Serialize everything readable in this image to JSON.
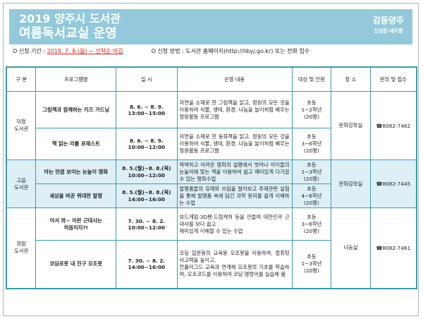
{
  "banner": {
    "title_line1": "2019 양주시 도서관",
    "title_line2": "여름독서교실 운영",
    "logo_main": "감동양주",
    "logo_sub": "신성장·새지평"
  },
  "info": {
    "period_label": "O 신청 기간 : ",
    "period_value": "2019. 7. 8.(월) ~ 선착순 마감",
    "method": "O 신청 방법 : 도서관 홈페이지(http://libyj.go.kr) 또는 전화 접수"
  },
  "colors": {
    "banner": "#93c9da",
    "border": "#3d9aaa",
    "highlight_row": "#deeff5",
    "accent_red": "#d02020"
  },
  "table": {
    "headers": [
      "구 분",
      "프로그램명",
      "일 시",
      "운영 내용",
      "대상 및 인원",
      "장 소",
      "문의 및 접수"
    ],
    "groups": [
      {
        "library": "덕정\n도서관",
        "place": "문화강좌실",
        "contact": "☎8082-7462",
        "rows": [
          {
            "program": "그림책과 함께하는 키즈 가드닝",
            "date": "8. 6. ~ 8. 9.\n13:00~15:00",
            "content": "자연을 소재로 한 그림책을 읽고, 정원의 모든 것을 이용하여 식물, 생태, 환경, 나눔을 놀이처럼 배우는 정원활동 프로그램",
            "target": "초등\n1~2학년\n(20명)"
          },
          {
            "program": "책 읽는 리틀 포레스트",
            "date": "8. 6. ~ 8. 9.\n10:00~12:00",
            "content": "자연을 소재로 한 동화책을 읽고, 정원의 모든 것을 이용하여 식물, 생태, 환경, 나눔을 놀이처럼 배우는 정원활동 프로그램",
            "target": "초등\n3~6학년\n(20명)"
          }
        ]
      },
      {
        "library": "고읍\n도서관",
        "place": "문화강좌실",
        "contact": "☎8082-7445",
        "rows": [
          {
            "program": "아는 만큼 보이는 눈높이 명화",
            "date": "8. 5.(월)~8. 8.(목)\n10:00~12:00",
            "content": "딱딱하고 어려운 명화의 설명에서 벗어나 아이들의 눈높이에 맞는 책을 이용하여 쉽고 재미있게 다가갈 수 있는 명화수업",
            "target": "초등\n1~3학년\n(20명)"
          },
          {
            "program": "세상을 바꾼 위대한 발명",
            "date": "8. 5.(월)~8. 8.(목)\n14:00~16:00",
            "content": "발명품들의 유래와 쓰임을 알아보고 주제관련 실험을 통해 발명품 속에 담긴 과학 원리를 쉽게 이해하는 수업",
            "target": "초등\n4~6학년\n(20명)"
          }
        ]
      },
      {
        "library": "희망\n도서관",
        "place": "나눔실",
        "contact": "☎8082-7461",
        "rows": [
          {
            "program": "어서 와~ 이런 근대사는\n처음이지?!",
            "date": "7. 30. ~ 8. 2.\n10:00~12:00",
            "content": "보드게임·3D펜·드림캐처 등을 만들며 대한민국 근대사를 보다 쉽고\n재미있게 이해할 수 있는 수업",
            "target": "초등\n3~6학년\n(20명)"
          },
          {
            "program": "코딩로봇 내 친구 오조봇",
            "date": "7. 30. ~ 8. 2.\n14:00~16:00",
            "content": "코딩 입문용의 교육용 오조봇을 이용하여, 컴퓨팅 사고력을 높이고,\n언플러그드 교육과 연계해 오조봇의 기초를 학습하며, 오조코드를 이용하여 코딩 명령어를 실습해 봄",
            "target": "초등\n1~3학년\n(20명)"
          }
        ]
      }
    ]
  }
}
